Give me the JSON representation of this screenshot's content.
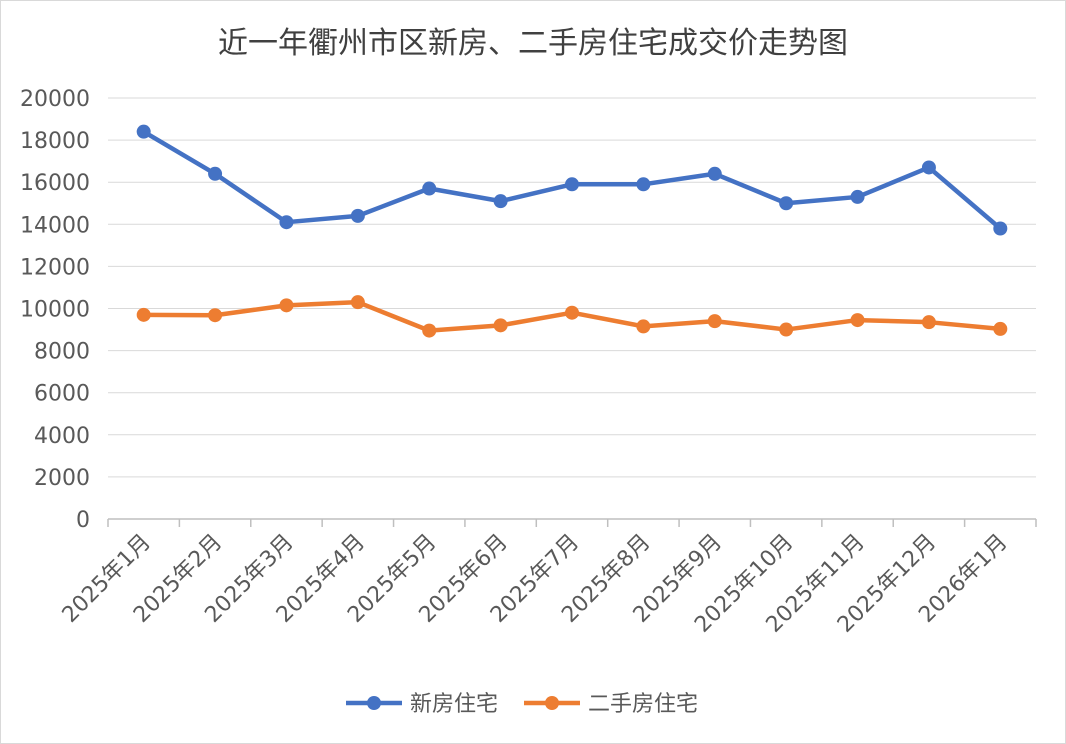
{
  "chart_data": {
    "type": "line",
    "title": "近一年衢州市区新房、二手房住宅成交价走势图",
    "categories": [
      "2025年1月",
      "2025年2月",
      "2025年3月",
      "2025年4月",
      "2025年5月",
      "2025年6月",
      "2025年7月",
      "2025年8月",
      "2025年9月",
      "2025年10月",
      "2025年11月",
      "2025年12月",
      "2026年1月"
    ],
    "series": [
      {
        "name": "新房住宅",
        "color": "#4472c4",
        "values": [
          18400,
          16400,
          14100,
          14400,
          15700,
          15100,
          15900,
          15900,
          16400,
          15000,
          15300,
          16700,
          13800
        ]
      },
      {
        "name": "二手房住宅",
        "color": "#ed7d31",
        "values": [
          9700,
          9680,
          10150,
          10300,
          8950,
          9200,
          9800,
          9150,
          9400,
          9000,
          9450,
          9350,
          9030
        ]
      }
    ],
    "ylim": [
      0,
      20000
    ],
    "yticks": [
      "0",
      "2000",
      "4000",
      "6000",
      "8000",
      "10000",
      "12000",
      "14000",
      "16000",
      "18000",
      "20000"
    ],
    "grid": true,
    "legend": "bottom"
  }
}
